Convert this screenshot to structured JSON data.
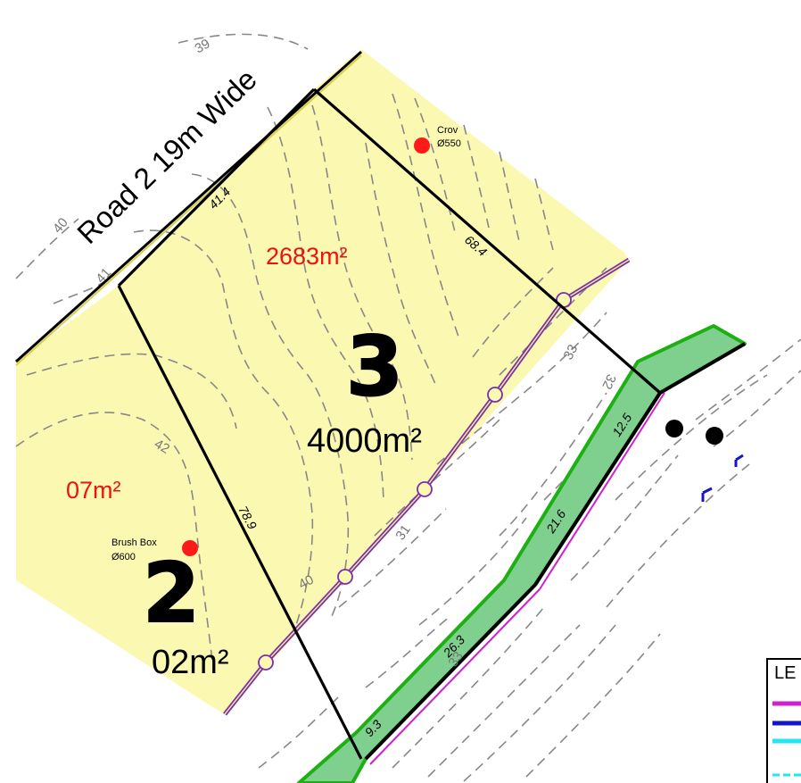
{
  "road": {
    "label": "Road 2  19m Wide"
  },
  "lots": [
    {
      "number": "3",
      "area": "4000m²",
      "partial_area": "2683m²"
    },
    {
      "number": "2",
      "area": "02m²",
      "partial_area": "07m²"
    }
  ],
  "dimensions": [
    "41.4",
    "68.4",
    "78.9",
    "12.5",
    "21.6",
    "26.3",
    "9.3"
  ],
  "contours": [
    "39",
    "40",
    "41",
    "42",
    "40",
    "31",
    "33",
    "32",
    "33"
  ],
  "trees": [
    {
      "name": "Crov",
      "size": "Ø550"
    },
    {
      "name": "Brush Box",
      "size": "Ø600"
    }
  ],
  "legend": {
    "title": "LE"
  },
  "colors": {
    "lot_fill": "#fbf8b2",
    "boundary": "#000000",
    "corridor": "#7fd08f",
    "corridor_edge": "#1db012",
    "fence": "#7a2eb0",
    "tree_dot": "#ff1a1a",
    "area_red": "#ee1111",
    "legend_magenta": "#d020d0",
    "legend_blue": "#1414c8",
    "legend_cyan": "#22e6f0"
  }
}
